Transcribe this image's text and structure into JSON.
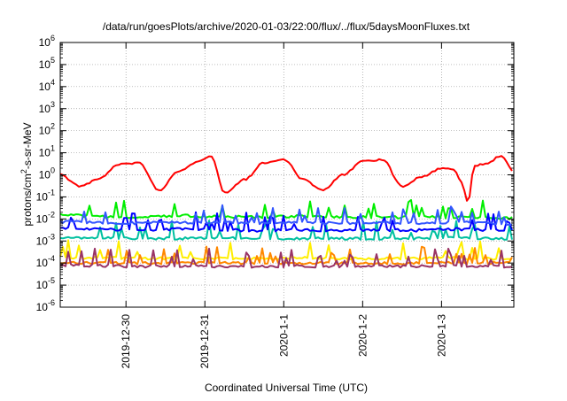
{
  "chart_data": {
    "type": "line",
    "title": "/data/run/goesPlots/archive/2020-01-03/22:00/flux/../flux/5daysMoonFluxes.txt",
    "xlabel": "Coordinated Universal Time (UTC)",
    "ylabel": {
      "base": "protons/cm",
      "sup": "2",
      "rest": "-s-sr-MeV"
    },
    "x_domain": [
      "2019-12-29T04:00",
      "2020-01-03T22:00"
    ],
    "x_ticks": [
      {
        "label": "2019-12-30",
        "date": "2019-12-30T00:00"
      },
      {
        "label": "2019-12-31",
        "date": "2019-12-31T00:00"
      },
      {
        "label": "2020-1-1",
        "date": "2020-01-01T00:00"
      },
      {
        "label": "2020-1-2",
        "date": "2020-01-02T00:00"
      },
      {
        "label": "2020-1-3",
        "date": "2020-01-03T00:00"
      }
    ],
    "y_scale": "log",
    "y_ticks": [
      {
        "base": "10",
        "exp": "-6"
      },
      {
        "base": "10",
        "exp": "-5"
      },
      {
        "base": "10",
        "exp": "-4"
      },
      {
        "base": "10",
        "exp": "-3"
      },
      {
        "base": "10",
        "exp": "-2"
      },
      {
        "base": "10",
        "exp": "-1"
      },
      {
        "base": "10",
        "exp": "0"
      },
      {
        "base": "10",
        "exp": "1"
      },
      {
        "base": "10",
        "exp": "2"
      },
      {
        "base": "10",
        "exp": "3"
      },
      {
        "base": "10",
        "exp": "4"
      },
      {
        "base": "10",
        "exp": "5"
      },
      {
        "base": "10",
        "exp": "6"
      }
    ],
    "ylim": [
      1e-06,
      1000000.0
    ],
    "grid": true,
    "series": [
      {
        "color": "#ff0000",
        "style": "smooth",
        "x": [
          "2019-12-29T04:00",
          "2019-12-29T10:00",
          "2019-12-29T16:00",
          "2019-12-29T22:00",
          "2019-12-30T04:00",
          "2019-12-30T10:00",
          "2019-12-30T16:00",
          "2019-12-30T22:00",
          "2019-12-31T02:00",
          "2019-12-31T06:00",
          "2019-12-31T12:00",
          "2019-12-31T18:00",
          "2020-01-01T00:00",
          "2020-01-01T06:00",
          "2020-01-01T12:00",
          "2020-01-01T18:00",
          "2020-01-02T00:00",
          "2020-01-02T06:00",
          "2020-01-02T12:00",
          "2020-01-02T18:00",
          "2020-01-03T00:00",
          "2020-01-03T04:00",
          "2020-01-03T06:00",
          "2020-01-03T08:00",
          "2020-01-03T10:00",
          "2020-01-03T14:00",
          "2020-01-03T18:00",
          "2020-01-03T22:00"
        ],
        "y": [
          1.0,
          0.3,
          0.7,
          3.0,
          3.5,
          0.2,
          1.5,
          4.0,
          7.0,
          0.15,
          0.6,
          3.5,
          5.0,
          0.6,
          0.2,
          1.0,
          4.0,
          5.0,
          0.3,
          0.8,
          2.0,
          1.6,
          0.5,
          0.06,
          2.5,
          3.5,
          7.0,
          1.5
        ]
      },
      {
        "color": "#00ee00",
        "style": "noisy",
        "x": [
          "2019-12-29T04:00",
          "2019-12-29T16:00",
          "2019-12-30T04:00",
          "2019-12-30T16:00",
          "2019-12-31T04:00",
          "2019-12-31T16:00",
          "2020-01-01T04:00",
          "2020-01-01T16:00",
          "2020-01-02T04:00",
          "2020-01-02T16:00",
          "2020-01-03T04:00",
          "2020-01-03T16:00",
          "2020-01-03T22:00"
        ],
        "y": [
          0.015,
          0.013,
          0.012,
          0.014,
          0.013,
          0.012,
          0.013,
          0.012,
          0.012,
          0.012,
          0.012,
          0.011,
          0.011
        ]
      },
      {
        "color": "#00c0a0",
        "style": "noisy",
        "x": [
          "2019-12-29T04:00",
          "2019-12-29T16:00",
          "2019-12-30T04:00",
          "2019-12-30T16:00",
          "2019-12-31T04:00",
          "2019-12-31T16:00",
          "2020-01-01T04:00",
          "2020-01-01T16:00",
          "2020-01-02T04:00",
          "2020-01-02T16:00",
          "2020-01-03T04:00",
          "2020-01-03T16:00",
          "2020-01-03T22:00"
        ],
        "y": [
          0.0015,
          0.0014,
          0.0013,
          0.0013,
          0.0014,
          0.0013,
          0.0013,
          0.0013,
          0.0013,
          0.0013,
          0.0014,
          0.0013,
          0.0012
        ]
      },
      {
        "color": "#0000ff",
        "style": "noisy",
        "x": [
          "2019-12-29T04:00",
          "2019-12-29T16:00",
          "2019-12-30T04:00",
          "2019-12-30T16:00",
          "2019-12-31T04:00",
          "2019-12-31T16:00",
          "2020-01-01T04:00",
          "2020-01-01T16:00",
          "2020-01-02T04:00",
          "2020-01-02T16:00",
          "2020-01-03T04:00",
          "2020-01-03T16:00",
          "2020-01-03T22:00"
        ],
        "y": [
          0.004,
          0.0035,
          0.003,
          0.0035,
          0.0032,
          0.003,
          0.0032,
          0.003,
          0.0032,
          0.003,
          0.0035,
          0.003,
          0.0028
        ]
      },
      {
        "color": "#3355ff",
        "style": "noisy",
        "x": [
          "2019-12-29T04:00",
          "2019-12-29T16:00",
          "2019-12-30T04:00",
          "2019-12-30T16:00",
          "2019-12-31T04:00",
          "2019-12-31T16:00",
          "2020-01-01T04:00",
          "2020-01-01T16:00",
          "2020-01-02T04:00",
          "2020-01-02T16:00",
          "2020-01-03T04:00",
          "2020-01-03T16:00",
          "2020-01-03T22:00"
        ],
        "y": [
          0.0075,
          0.007,
          0.0065,
          0.007,
          0.0068,
          0.0065,
          0.0068,
          0.0065,
          0.0068,
          0.0065,
          0.007,
          0.0065,
          0.006
        ]
      },
      {
        "color": "#ffee00",
        "style": "noisy",
        "x": [
          "2019-12-29T04:00",
          "2019-12-29T16:00",
          "2019-12-30T04:00",
          "2019-12-30T16:00",
          "2019-12-31T04:00",
          "2019-12-31T16:00",
          "2020-01-01T04:00",
          "2020-01-01T16:00",
          "2020-01-02T04:00",
          "2020-01-02T16:00",
          "2020-01-03T04:00",
          "2020-01-03T16:00",
          "2020-01-03T22:00"
        ],
        "y": [
          0.00018,
          0.00017,
          0.00016,
          0.00017,
          0.00016,
          0.00016,
          0.00017,
          0.00016,
          0.00016,
          0.00016,
          0.00017,
          0.00016,
          0.00015
        ]
      },
      {
        "color": "#ff8800",
        "style": "noisy",
        "x": [
          "2019-12-29T04:00",
          "2019-12-29T16:00",
          "2019-12-30T04:00",
          "2019-12-30T16:00",
          "2019-12-31T04:00",
          "2019-12-31T16:00",
          "2020-01-01T04:00",
          "2020-01-01T16:00",
          "2020-01-02T04:00",
          "2020-01-02T16:00",
          "2020-01-03T04:00",
          "2020-01-03T16:00",
          "2020-01-03T22:00"
        ],
        "y": [
          0.00011,
          0.0001,
          0.0001,
          0.0001,
          0.0001,
          0.0001,
          0.0001,
          0.0001,
          0.0001,
          0.0001,
          0.0001,
          0.0001,
          0.0001
        ]
      },
      {
        "color": "#993366",
        "style": "noisy",
        "x": [
          "2019-12-29T04:00",
          "2019-12-29T16:00",
          "2019-12-30T04:00",
          "2019-12-30T16:00",
          "2019-12-31T04:00",
          "2019-12-31T16:00",
          "2020-01-01T04:00",
          "2020-01-01T16:00",
          "2020-01-02T04:00",
          "2020-01-02T16:00",
          "2020-01-03T04:00",
          "2020-01-03T16:00",
          "2020-01-03T22:00"
        ],
        "y": [
          8e-05,
          7.5e-05,
          7e-05,
          7.5e-05,
          7.2e-05,
          7e-05,
          7.2e-05,
          7e-05,
          7.2e-05,
          7e-05,
          7.5e-05,
          7e-05,
          7e-05
        ]
      }
    ]
  }
}
